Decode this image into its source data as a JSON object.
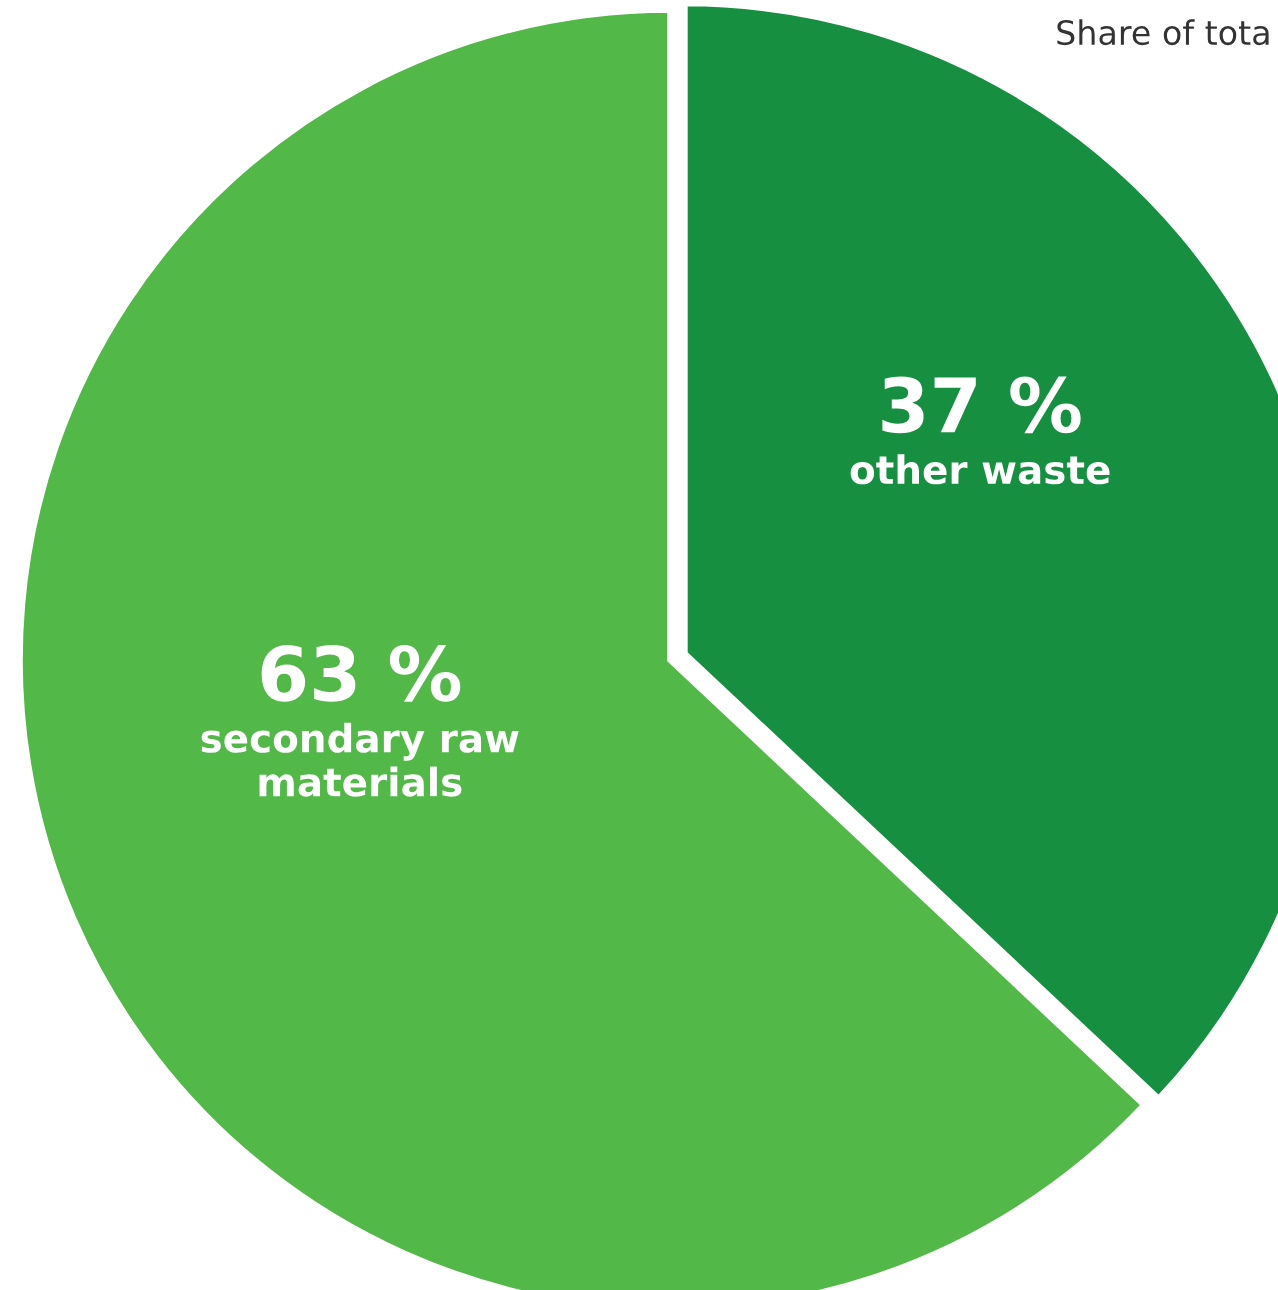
{
  "chart_data": {
    "type": "pie",
    "categories": [
      "other waste",
      "secondary raw\nmaterials"
    ],
    "values": [
      37,
      63
    ],
    "colors": [
      "#169040",
      "#52b848"
    ],
    "value_labels": [
      "37 %",
      "63 %"
    ],
    "annotations": [
      "Share of tota"
    ]
  }
}
